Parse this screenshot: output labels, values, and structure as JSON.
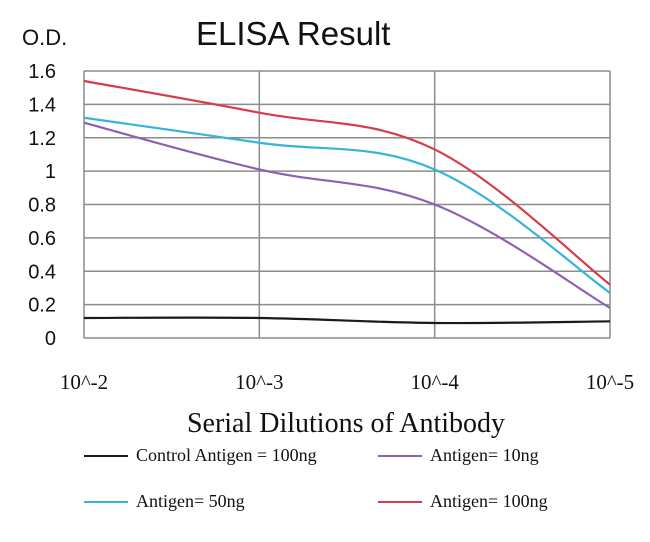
{
  "chart_data": {
    "type": "line",
    "title": "ELISA Result",
    "ylabel": "O.D.",
    "xlabel": "Serial Dilutions of Antibody",
    "categories": [
      "10^-2",
      "10^-3",
      "10^-4",
      "10^-5"
    ],
    "y_ticks": [
      "0",
      "0.2",
      "0.4",
      "0.6",
      "0.8",
      "1",
      "1.2",
      "1.4",
      "1.6"
    ],
    "ylim": [
      0,
      1.6
    ],
    "grid": true,
    "legend_position": "bottom",
    "series": [
      {
        "name": "Control Antigen = 100ng",
        "color": "#1a1a1a",
        "values": [
          0.12,
          0.12,
          0.09,
          0.1
        ]
      },
      {
        "name": "Antigen= 10ng",
        "color": "#8f5fb4",
        "values": [
          1.29,
          1.01,
          0.8,
          0.18
        ]
      },
      {
        "name": "Antigen= 50ng",
        "color": "#37b4d8",
        "values": [
          1.32,
          1.17,
          1.01,
          0.27
        ]
      },
      {
        "name": "Antigen= 100ng",
        "color": "#d63c4a",
        "values": [
          1.54,
          1.35,
          1.13,
          0.32
        ]
      }
    ]
  }
}
